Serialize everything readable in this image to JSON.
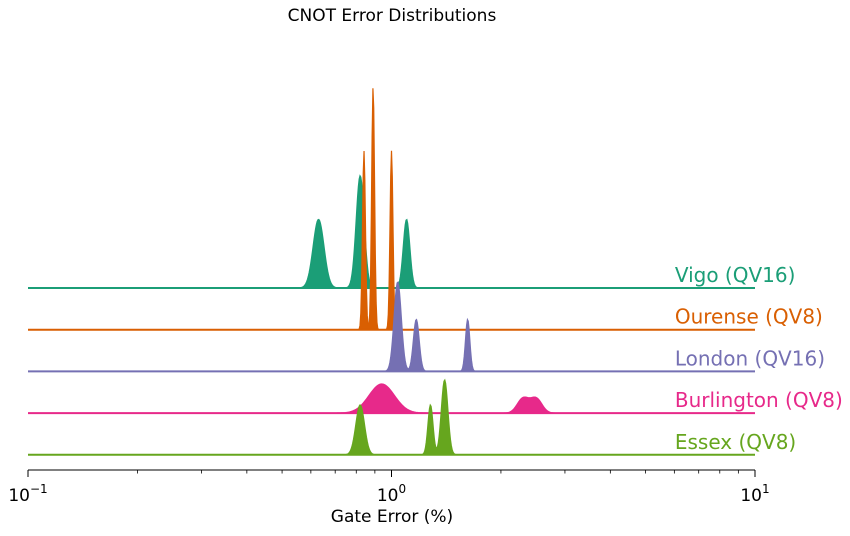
{
  "chart_data": {
    "type": "area",
    "title": "CNOT Error Distributions",
    "xlabel": "Gate Error (%)",
    "ylabel": "",
    "xscale": "log",
    "xlim": [
      0.1,
      10
    ],
    "x_ticks": [
      {
        "value": 0.1,
        "base": "10",
        "exp": "−1"
      },
      {
        "value": 1,
        "base": "10",
        "exp": "0"
      },
      {
        "value": 10,
        "base": "10",
        "exp": "1"
      }
    ],
    "grid": false,
    "legend": "inline labels at right end of each ridge",
    "series": [
      {
        "name": "Vigo (QV16)",
        "color": "#1b9e77",
        "label_x": 6.0,
        "peaks": [
          {
            "x": 0.63,
            "height": 0.33,
            "width": 0.015
          },
          {
            "x": 0.82,
            "height": 0.54,
            "width": 0.011
          },
          {
            "x": 1.1,
            "height": 0.33,
            "width": 0.009
          }
        ]
      },
      {
        "name": "Ourense (QV8)",
        "color": "#d95f02",
        "label_x": 6.0,
        "peaks": [
          {
            "x": 0.84,
            "height": 0.86,
            "width": 0.004
          },
          {
            "x": 0.89,
            "height": 1.17,
            "width": 0.004
          },
          {
            "x": 1.0,
            "height": 0.86,
            "width": 0.004
          }
        ]
      },
      {
        "name": "London (QV16)",
        "color": "#7570b3",
        "label_x": 6.0,
        "peaks": [
          {
            "x": 1.04,
            "height": 0.43,
            "width": 0.01
          },
          {
            "x": 1.17,
            "height": 0.25,
            "width": 0.008
          },
          {
            "x": 1.62,
            "height": 0.25,
            "width": 0.006
          }
        ]
      },
      {
        "name": "Burlington (QV8)",
        "color": "#e7298a",
        "label_x": 6.0,
        "peaks": [
          {
            "x": 0.94,
            "height": 0.14,
            "width": 0.035
          },
          {
            "x": 2.3,
            "height": 0.07,
            "width": 0.016
          },
          {
            "x": 2.5,
            "height": 0.07,
            "width": 0.016
          }
        ]
      },
      {
        "name": "Essex (QV8)",
        "color": "#66a61e",
        "label_x": 6.0,
        "peaks": [
          {
            "x": 0.82,
            "height": 0.24,
            "width": 0.012
          },
          {
            "x": 1.28,
            "height": 0.24,
            "width": 0.007
          },
          {
            "x": 1.4,
            "height": 0.36,
            "width": 0.009
          }
        ]
      }
    ]
  }
}
